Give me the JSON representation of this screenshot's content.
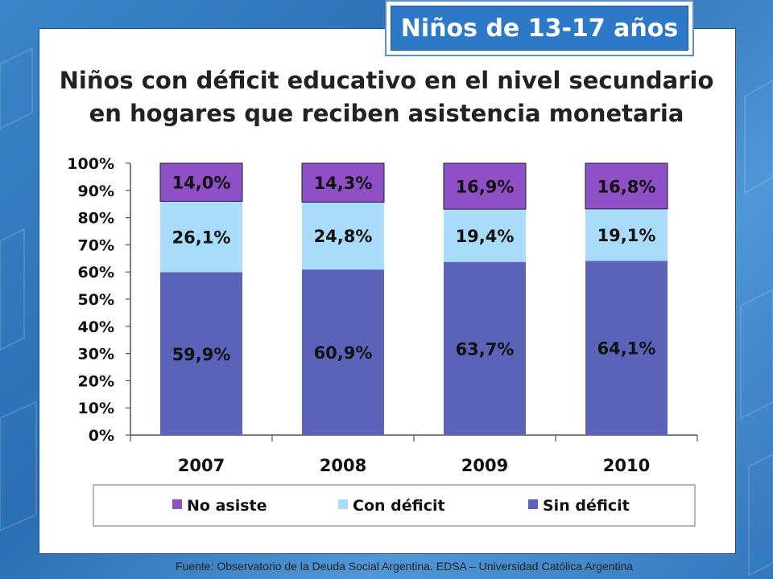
{
  "badge": {
    "label": "Niños de 13-17 años"
  },
  "title": {
    "line1": "Niños con déficit educativo en el nivel secundario",
    "line2": "en hogares que reciben asistencia monetaria"
  },
  "footer": {
    "source": "Fuente: Observatorio de la Deuda Social Argentina. EDSA – Universidad Católica Argentina"
  },
  "colors": {
    "no_asiste": "#8e4fc7",
    "con_deficit": "#a9dbfa",
    "sin_deficit": "#5b63b8",
    "axis": "#555555",
    "panel_border": "#1d4f86"
  },
  "chart_data": {
    "type": "bar",
    "stacked": true,
    "categories": [
      "2007",
      "2008",
      "2009",
      "2010"
    ],
    "ylim": [
      0,
      100
    ],
    "y_ticks": [
      "0%",
      "10%",
      "20%",
      "30%",
      "40%",
      "50%",
      "60%",
      "70%",
      "80%",
      "90%",
      "100%"
    ],
    "grid": false,
    "legend_position": "bottom",
    "series": [
      {
        "name": "Sin déficit",
        "color": "#5b63b8",
        "values": [
          59.9,
          60.9,
          63.7,
          64.1
        ],
        "labels": [
          "59,9%",
          "60,9%",
          "63,7%",
          "64,1%"
        ]
      },
      {
        "name": "Con déficit",
        "color": "#a9dbfa",
        "values": [
          26.1,
          24.8,
          19.4,
          19.1
        ],
        "labels": [
          "26,1%",
          "24,8%",
          "19,4%",
          "19,1%"
        ]
      },
      {
        "name": "No asiste",
        "color": "#8e4fc7",
        "values": [
          14.0,
          14.3,
          16.9,
          16.8
        ],
        "labels": [
          "14,0%",
          "14,3%",
          "16,9%",
          "16,8%"
        ]
      }
    ],
    "legend": [
      {
        "name": "No asiste",
        "color": "#8e4fc7"
      },
      {
        "name": "Con déficit",
        "color": "#a9dbfa"
      },
      {
        "name": "Sin déficit",
        "color": "#5b63b8"
      }
    ]
  }
}
